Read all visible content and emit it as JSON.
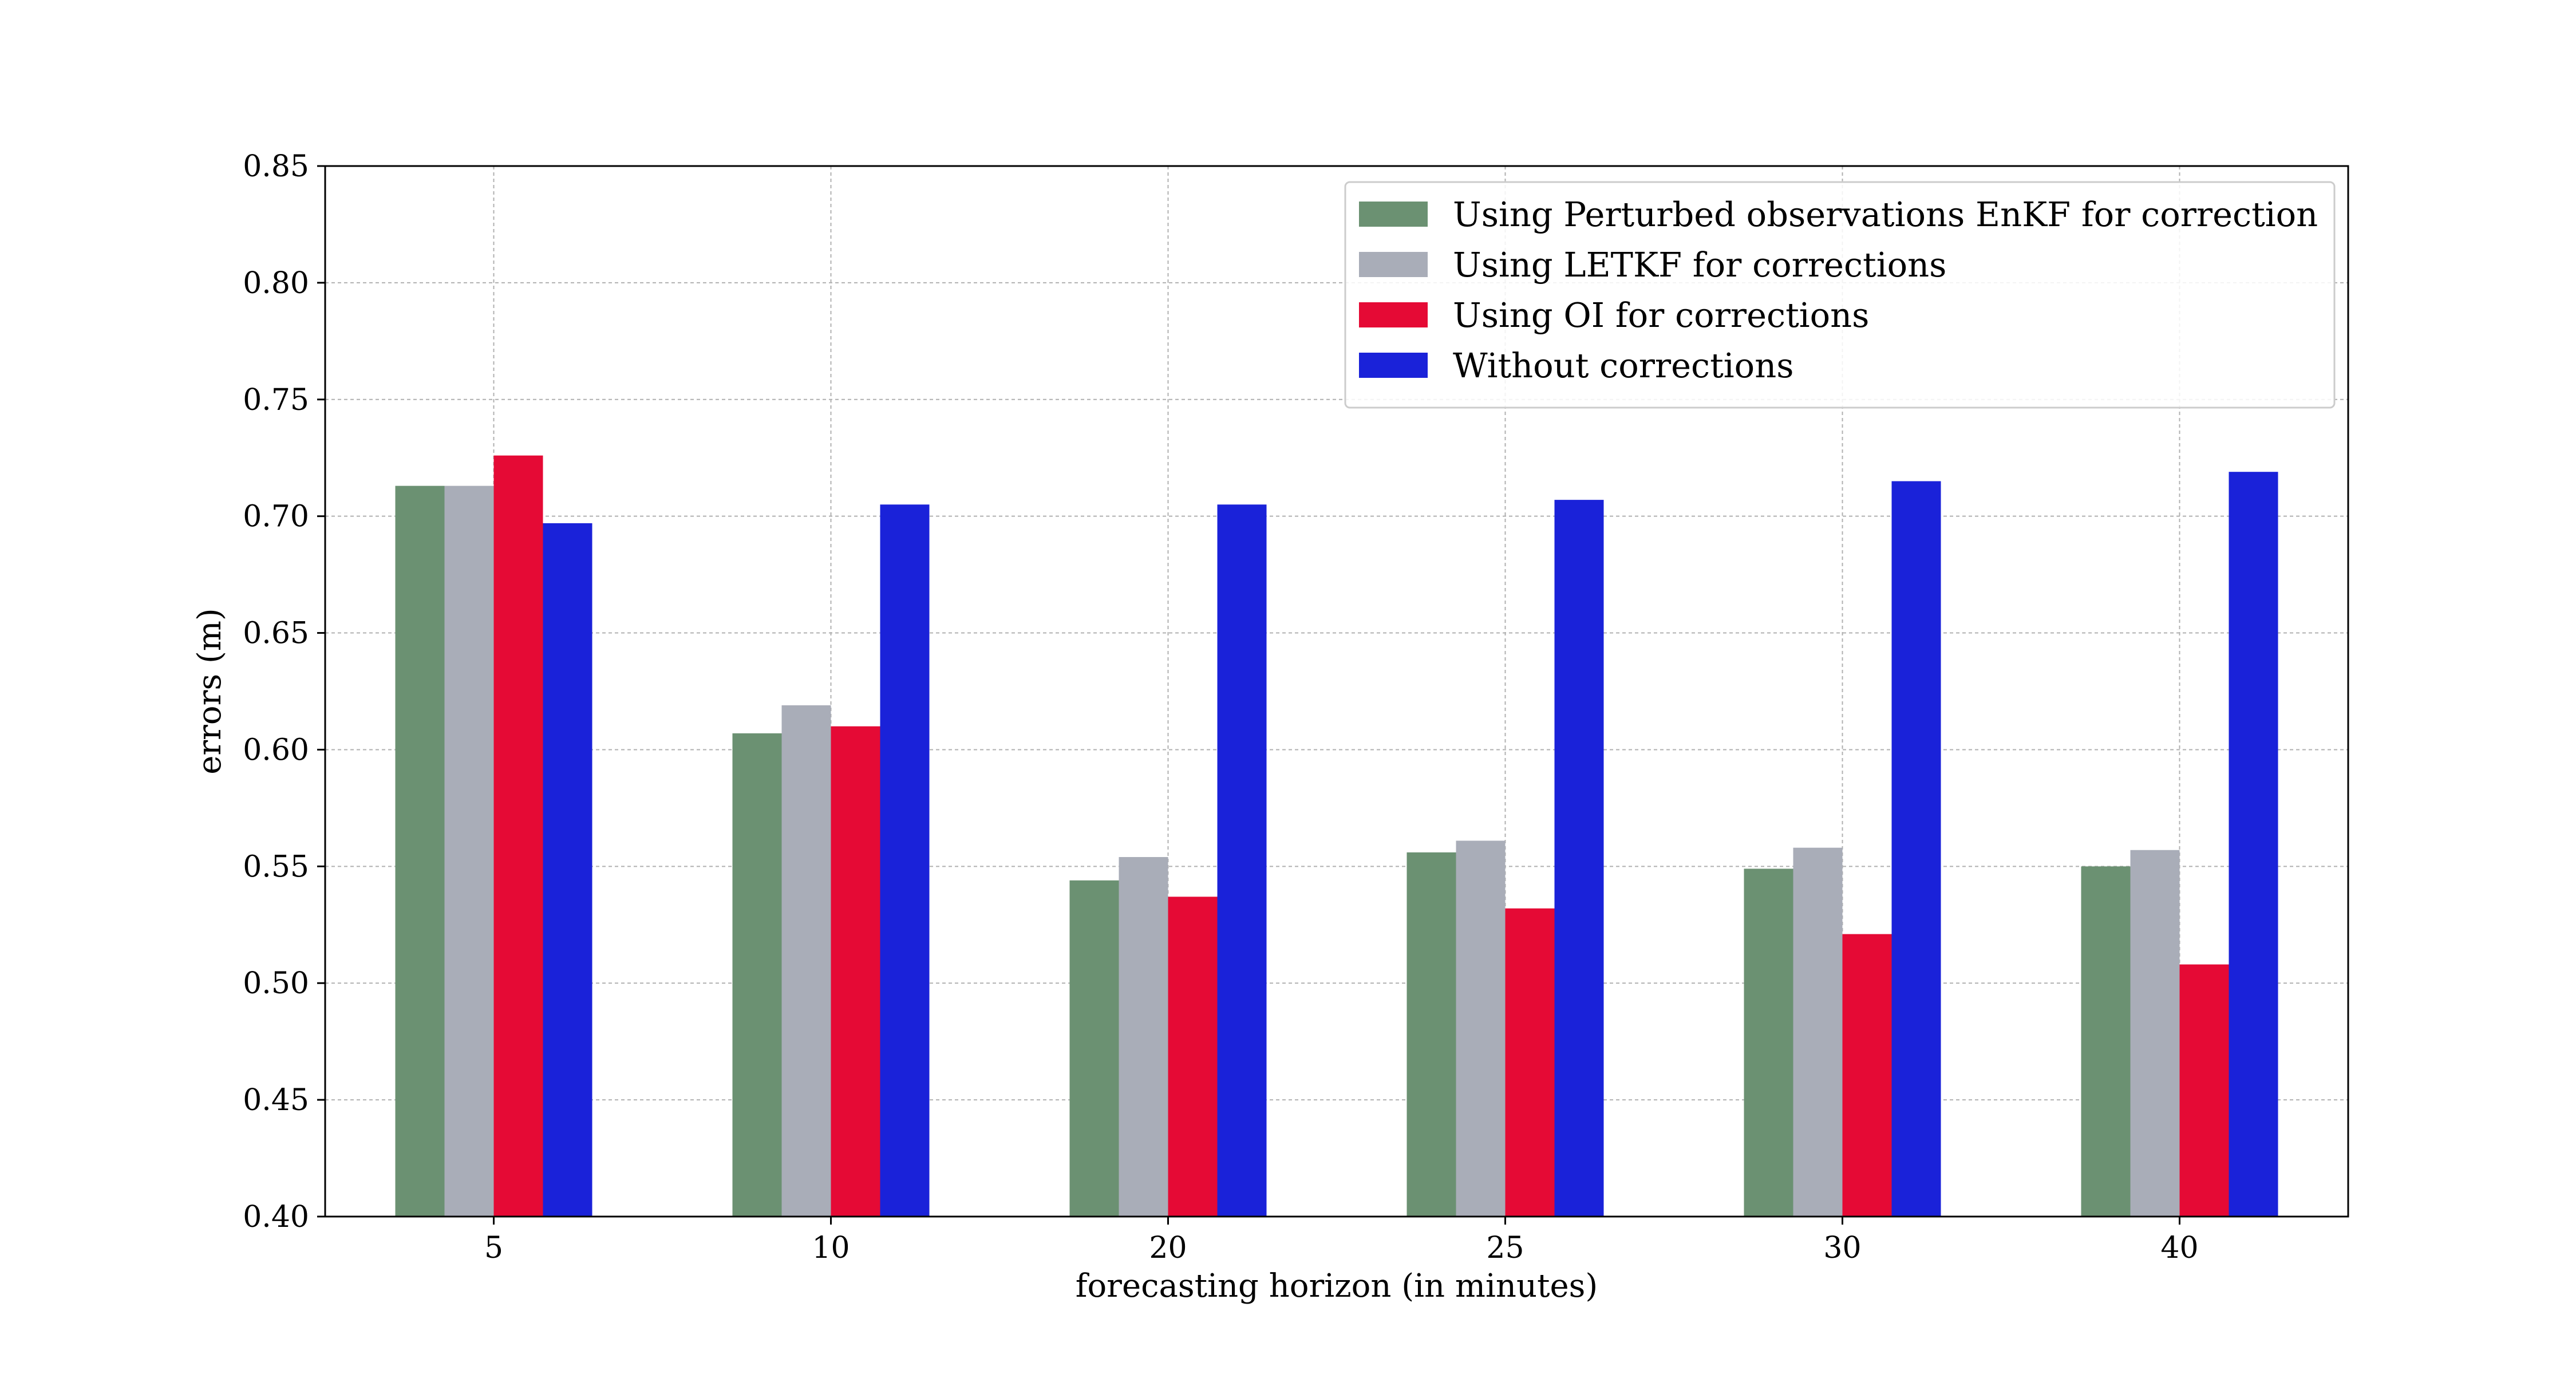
{
  "chart_data": {
    "type": "bar",
    "title": "",
    "xlabel": "forecasting horizon (in minutes)",
    "ylabel": "errors (m)",
    "categories": [
      "5",
      "10",
      "20",
      "25",
      "30",
      "40"
    ],
    "ylim": [
      0.4,
      0.85
    ],
    "yticks": [
      "0.40",
      "0.45",
      "0.50",
      "0.55",
      "0.60",
      "0.65",
      "0.70",
      "0.75",
      "0.80",
      "0.85"
    ],
    "grid": true,
    "legend_position": "top-right",
    "series": [
      {
        "name": "Using Perturbed observations EnKF for correction",
        "color": "#6b9172",
        "values": [
          0.713,
          0.607,
          0.544,
          0.556,
          0.549,
          0.55
        ]
      },
      {
        "name": "Using LETKF for corrections",
        "color": "#a9adb8",
        "values": [
          0.713,
          0.619,
          0.554,
          0.561,
          0.558,
          0.557
        ]
      },
      {
        "name": "Using OI for corrections",
        "color": "#e50a35",
        "values": [
          0.726,
          0.61,
          0.537,
          0.532,
          0.521,
          0.508
        ]
      },
      {
        "name": "Without corrections",
        "color": "#1a22d9",
        "values": [
          0.697,
          0.705,
          0.705,
          0.707,
          0.715,
          0.719
        ]
      }
    ]
  }
}
